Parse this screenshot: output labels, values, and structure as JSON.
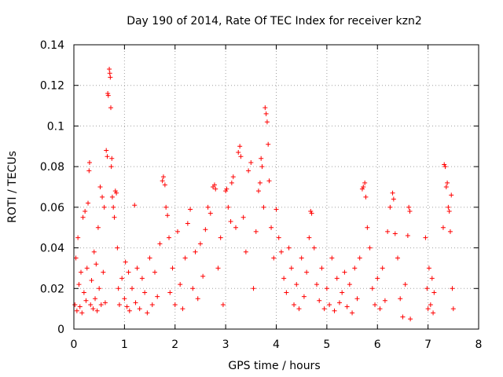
{
  "chart_data": {
    "type": "scatter",
    "title": "Day 190 of 2014, Rate Of TEC Index for receiver kzn2",
    "xlabel": "GPS time / hours",
    "ylabel": "ROTI / TECUs",
    "xlim": [
      0,
      8
    ],
    "ylim": [
      0,
      0.14
    ],
    "xticks": [
      0,
      1,
      2,
      3,
      4,
      5,
      6,
      7,
      8
    ],
    "yticks": [
      0,
      0.02,
      0.04,
      0.06,
      0.08,
      0.1,
      0.12,
      0.14
    ],
    "xtick_labels": [
      "0",
      "1",
      "2",
      "3",
      "4",
      "5",
      "6",
      "7",
      "8"
    ],
    "ytick_labels": [
      "0",
      "0.02",
      "0.04",
      "0.06",
      "0.08",
      "0.1",
      "0.12",
      "0.14"
    ],
    "grid": true,
    "marker": "+",
    "color": "#ff0000",
    "series": [
      {
        "name": "ROTI",
        "data": [
          [
            0.02,
            0.012
          ],
          [
            0.04,
            0.035
          ],
          [
            0.06,
            0.009
          ],
          [
            0.08,
            0.045
          ],
          [
            0.1,
            0.022
          ],
          [
            0.12,
            0.011
          ],
          [
            0.14,
            0.028
          ],
          [
            0.16,
            0.008
          ],
          [
            0.18,
            0.055
          ],
          [
            0.2,
            0.018
          ],
          [
            0.22,
            0.058
          ],
          [
            0.24,
            0.014
          ],
          [
            0.26,
            0.03
          ],
          [
            0.28,
            0.062
          ],
          [
            0.3,
            0.078
          ],
          [
            0.31,
            0.082
          ],
          [
            0.33,
            0.012
          ],
          [
            0.35,
            0.024
          ],
          [
            0.38,
            0.01
          ],
          [
            0.4,
            0.038
          ],
          [
            0.42,
            0.015
          ],
          [
            0.44,
            0.032
          ],
          [
            0.46,
            0.009
          ],
          [
            0.48,
            0.05
          ],
          [
            0.5,
            0.02
          ],
          [
            0.52,
            0.07
          ],
          [
            0.54,
            0.012
          ],
          [
            0.56,
            0.065
          ],
          [
            0.58,
            0.028
          ],
          [
            0.6,
            0.06
          ],
          [
            0.62,
            0.013
          ],
          [
            0.64,
            0.088
          ],
          [
            0.66,
            0.085
          ],
          [
            0.67,
            0.116
          ],
          [
            0.68,
            0.115
          ],
          [
            0.7,
            0.128
          ],
          [
            0.71,
            0.126
          ],
          [
            0.72,
            0.124
          ],
          [
            0.73,
            0.109
          ],
          [
            0.74,
            0.08
          ],
          [
            0.75,
            0.084
          ],
          [
            0.76,
            0.065
          ],
          [
            0.78,
            0.06
          ],
          [
            0.8,
            0.055
          ],
          [
            0.82,
            0.068
          ],
          [
            0.84,
            0.067
          ],
          [
            0.86,
            0.04
          ],
          [
            0.88,
            0.02
          ],
          [
            0.9,
            0.012
          ],
          [
            0.95,
            0.025
          ],
          [
            1.0,
            0.015
          ],
          [
            1.02,
            0.033
          ],
          [
            1.05,
            0.011
          ],
          [
            1.08,
            0.028
          ],
          [
            1.1,
            0.009
          ],
          [
            1.15,
            0.02
          ],
          [
            1.2,
            0.061
          ],
          [
            1.22,
            0.013
          ],
          [
            1.25,
            0.03
          ],
          [
            1.3,
            0.01
          ],
          [
            1.35,
            0.025
          ],
          [
            1.4,
            0.018
          ],
          [
            1.45,
            0.008
          ],
          [
            1.5,
            0.035
          ],
          [
            1.55,
            0.012
          ],
          [
            1.6,
            0.028
          ],
          [
            1.65,
            0.016
          ],
          [
            1.7,
            0.042
          ],
          [
            1.75,
            0.073
          ],
          [
            1.77,
            0.075
          ],
          [
            1.8,
            0.071
          ],
          [
            1.82,
            0.06
          ],
          [
            1.85,
            0.056
          ],
          [
            1.88,
            0.045
          ],
          [
            1.9,
            0.018
          ],
          [
            1.95,
            0.03
          ],
          [
            2.0,
            0.012
          ],
          [
            2.05,
            0.048
          ],
          [
            2.1,
            0.022
          ],
          [
            2.15,
            0.01
          ],
          [
            2.2,
            0.035
          ],
          [
            2.25,
            0.052
          ],
          [
            2.3,
            0.059
          ],
          [
            2.35,
            0.02
          ],
          [
            2.4,
            0.038
          ],
          [
            2.45,
            0.015
          ],
          [
            2.5,
            0.042
          ],
          [
            2.55,
            0.026
          ],
          [
            2.6,
            0.049
          ],
          [
            2.65,
            0.06
          ],
          [
            2.7,
            0.057
          ],
          [
            2.75,
            0.07
          ],
          [
            2.78,
            0.071
          ],
          [
            2.8,
            0.069
          ],
          [
            2.85,
            0.03
          ],
          [
            2.9,
            0.045
          ],
          [
            2.95,
            0.012
          ],
          [
            3.0,
            0.068
          ],
          [
            3.02,
            0.069
          ],
          [
            3.05,
            0.06
          ],
          [
            3.1,
            0.053
          ],
          [
            3.12,
            0.072
          ],
          [
            3.15,
            0.075
          ],
          [
            3.2,
            0.05
          ],
          [
            3.25,
            0.087
          ],
          [
            3.28,
            0.09
          ],
          [
            3.3,
            0.085
          ],
          [
            3.35,
            0.055
          ],
          [
            3.4,
            0.038
          ],
          [
            3.45,
            0.078
          ],
          [
            3.5,
            0.082
          ],
          [
            3.55,
            0.02
          ],
          [
            3.6,
            0.048
          ],
          [
            3.65,
            0.068
          ],
          [
            3.68,
            0.072
          ],
          [
            3.7,
            0.084
          ],
          [
            3.72,
            0.08
          ],
          [
            3.75,
            0.06
          ],
          [
            3.78,
            0.109
          ],
          [
            3.8,
            0.106
          ],
          [
            3.82,
            0.102
          ],
          [
            3.84,
            0.091
          ],
          [
            3.86,
            0.073
          ],
          [
            3.9,
            0.05
          ],
          [
            3.95,
            0.035
          ],
          [
            4.0,
            0.059
          ],
          [
            4.05,
            0.045
          ],
          [
            4.1,
            0.038
          ],
          [
            4.15,
            0.025
          ],
          [
            4.2,
            0.018
          ],
          [
            4.25,
            0.04
          ],
          [
            4.3,
            0.03
          ],
          [
            4.35,
            0.012
          ],
          [
            4.4,
            0.022
          ],
          [
            4.45,
            0.01
          ],
          [
            4.5,
            0.035
          ],
          [
            4.55,
            0.016
          ],
          [
            4.6,
            0.028
          ],
          [
            4.65,
            0.045
          ],
          [
            4.68,
            0.058
          ],
          [
            4.7,
            0.057
          ],
          [
            4.75,
            0.04
          ],
          [
            4.8,
            0.022
          ],
          [
            4.85,
            0.014
          ],
          [
            4.9,
            0.03
          ],
          [
            4.95,
            0.01
          ],
          [
            5.0,
            0.02
          ],
          [
            5.05,
            0.012
          ],
          [
            5.1,
            0.035
          ],
          [
            5.15,
            0.009
          ],
          [
            5.2,
            0.025
          ],
          [
            5.25,
            0.013
          ],
          [
            5.3,
            0.018
          ],
          [
            5.35,
            0.028
          ],
          [
            5.4,
            0.011
          ],
          [
            5.45,
            0.022
          ],
          [
            5.5,
            0.008
          ],
          [
            5.55,
            0.03
          ],
          [
            5.6,
            0.015
          ],
          [
            5.65,
            0.035
          ],
          [
            5.7,
            0.069
          ],
          [
            5.72,
            0.07
          ],
          [
            5.75,
            0.072
          ],
          [
            5.77,
            0.065
          ],
          [
            5.8,
            0.05
          ],
          [
            5.85,
            0.04
          ],
          [
            5.9,
            0.02
          ],
          [
            5.95,
            0.012
          ],
          [
            6.0,
            0.025
          ],
          [
            6.05,
            0.01
          ],
          [
            6.1,
            0.03
          ],
          [
            6.15,
            0.014
          ],
          [
            6.2,
            0.048
          ],
          [
            6.25,
            0.06
          ],
          [
            6.3,
            0.067
          ],
          [
            6.32,
            0.064
          ],
          [
            6.35,
            0.047
          ],
          [
            6.4,
            0.035
          ],
          [
            6.45,
            0.015
          ],
          [
            6.5,
            0.006
          ],
          [
            6.55,
            0.022
          ],
          [
            6.6,
            0.046
          ],
          [
            6.62,
            0.06
          ],
          [
            6.64,
            0.058
          ],
          [
            6.65,
            0.005
          ],
          [
            6.95,
            0.045
          ],
          [
            6.98,
            0.02
          ],
          [
            7.0,
            0.01
          ],
          [
            7.02,
            0.03
          ],
          [
            7.05,
            0.012
          ],
          [
            7.08,
            0.025
          ],
          [
            7.1,
            0.008
          ],
          [
            7.12,
            0.018
          ],
          [
            7.3,
            0.05
          ],
          [
            7.32,
            0.081
          ],
          [
            7.34,
            0.08
          ],
          [
            7.36,
            0.07
          ],
          [
            7.38,
            0.072
          ],
          [
            7.4,
            0.06
          ],
          [
            7.42,
            0.058
          ],
          [
            7.44,
            0.048
          ],
          [
            7.46,
            0.066
          ],
          [
            7.48,
            0.02
          ],
          [
            7.5,
            0.01
          ]
        ]
      }
    ]
  }
}
